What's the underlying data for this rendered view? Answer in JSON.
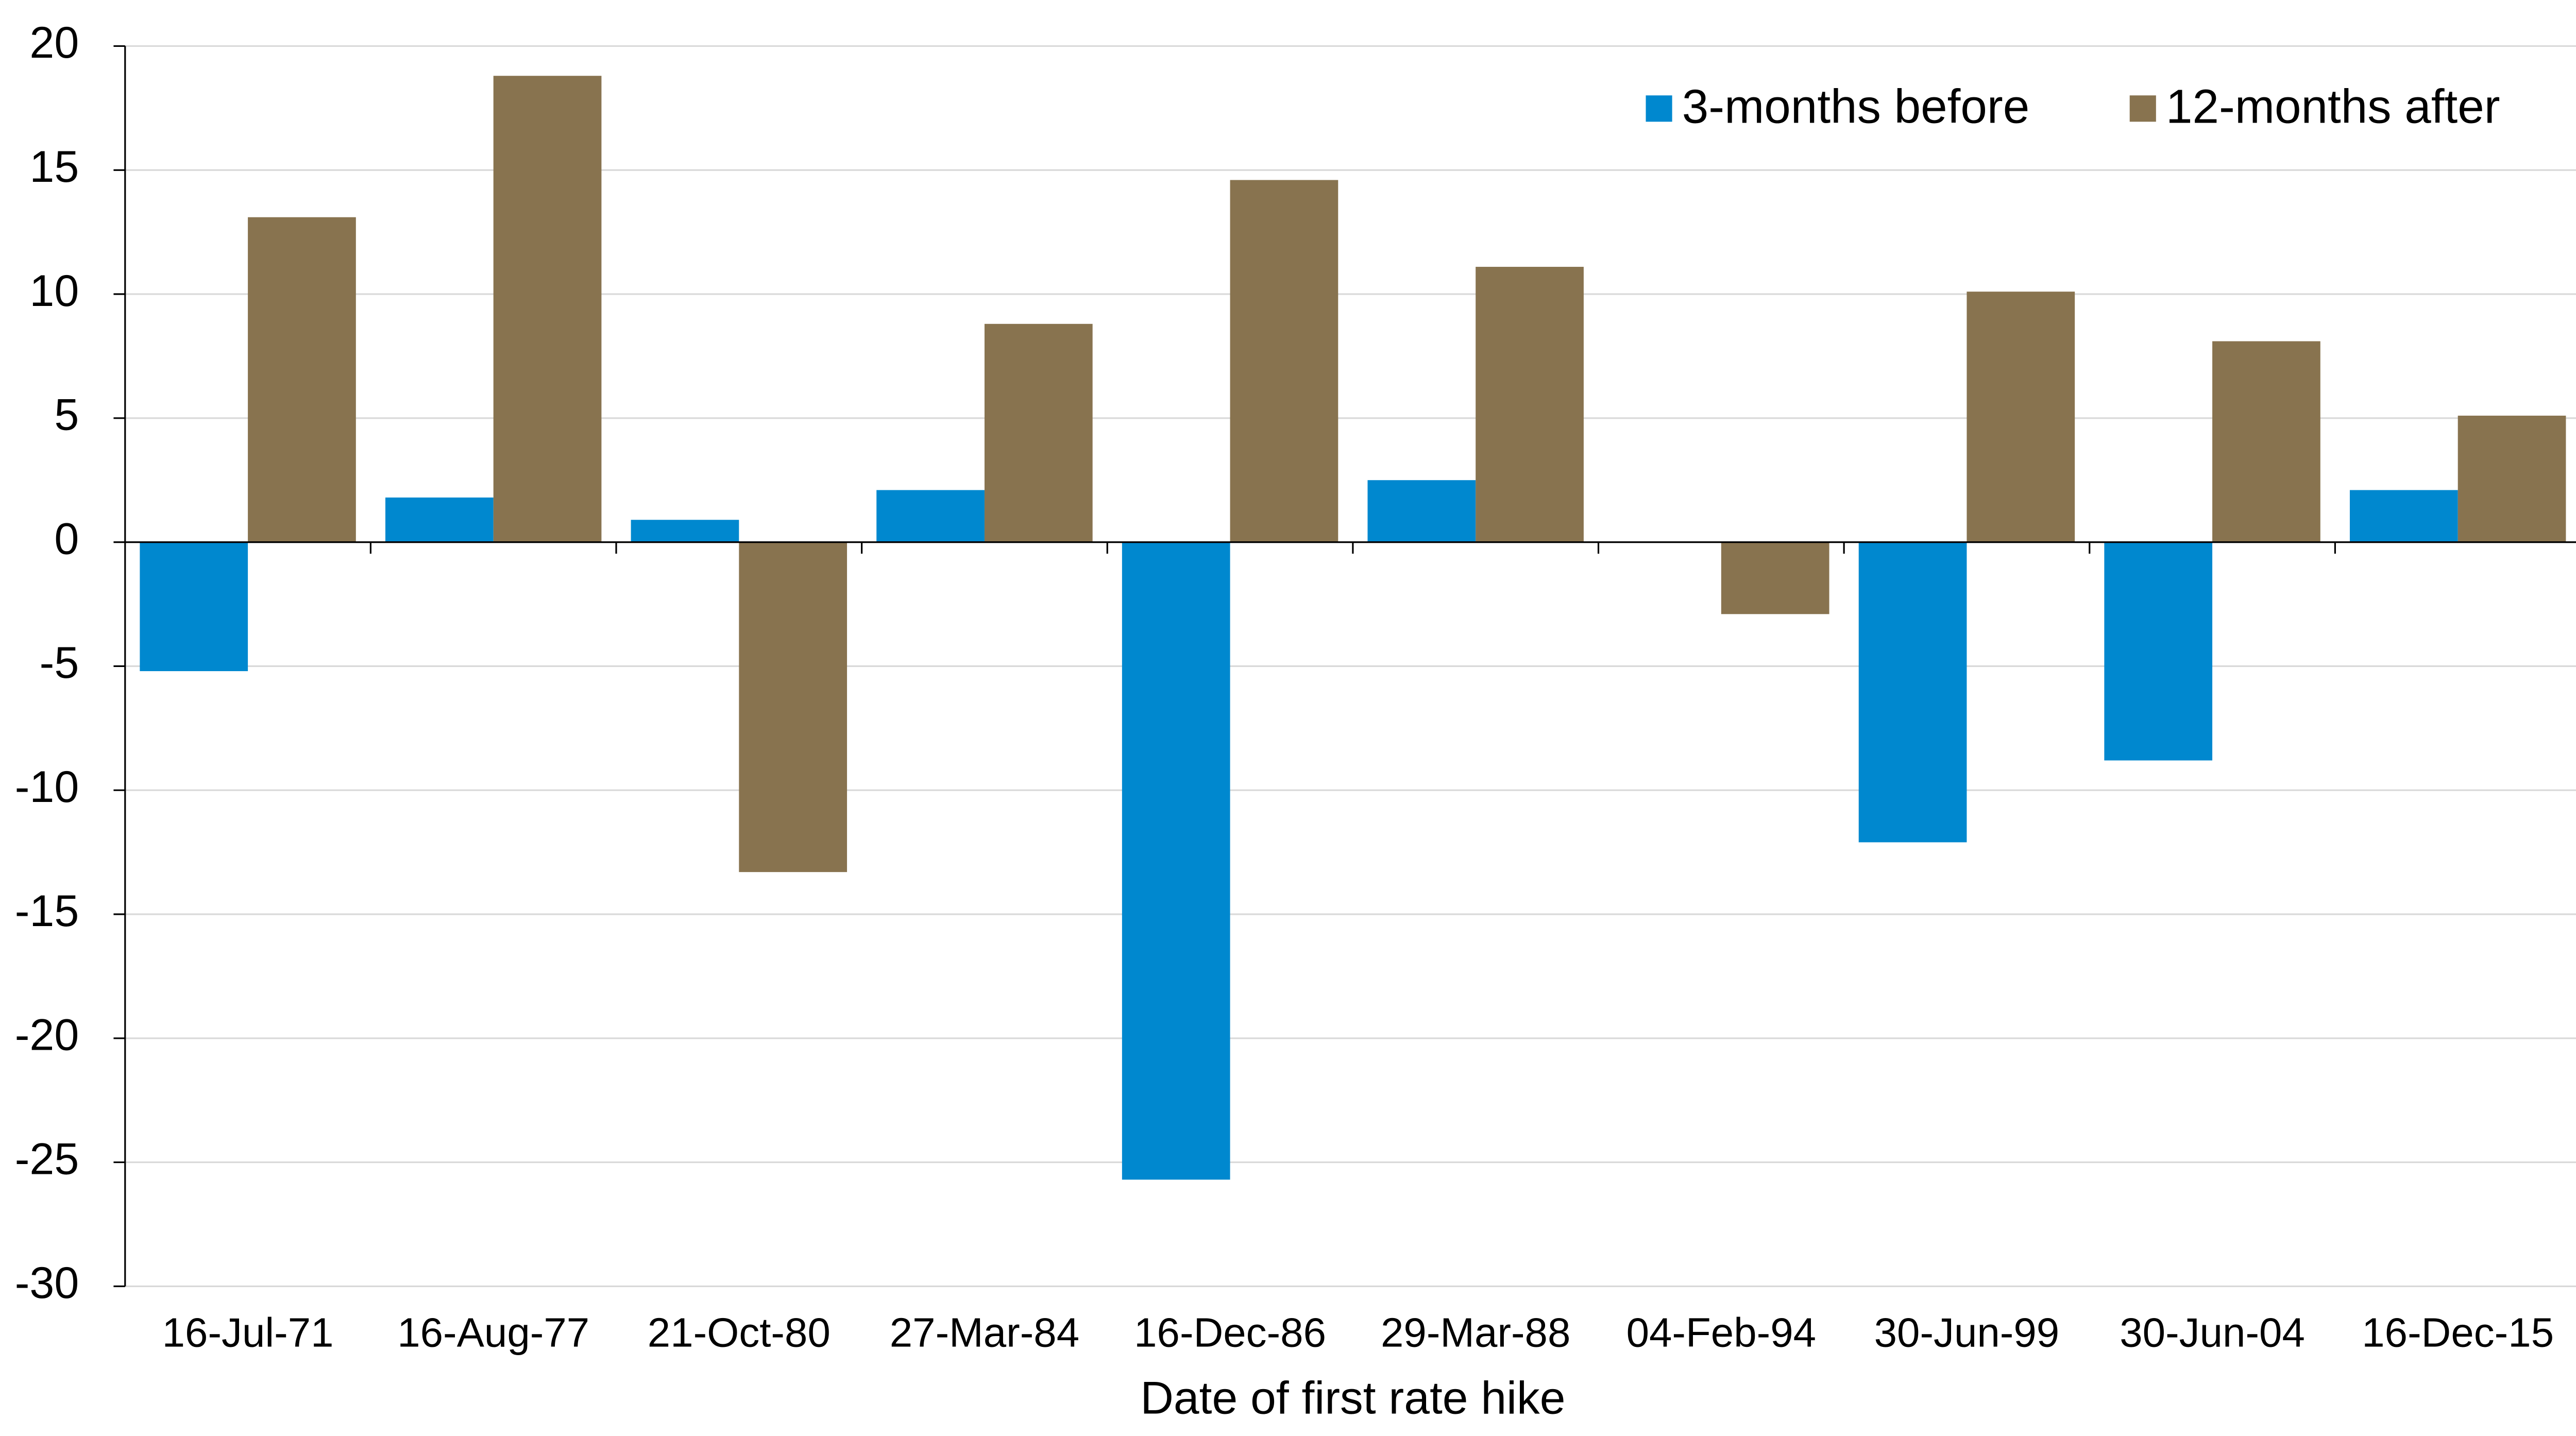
{
  "chart_data": {
    "type": "bar",
    "x_label": "Date of first rate hike",
    "categories": [
      "16-Jul-71",
      "16-Aug-77",
      "21-Oct-80",
      "27-Mar-84",
      "16-Dec-86",
      "29-Mar-88",
      "04-Feb-94",
      "30-Jun-99",
      "30-Jun-04",
      "16-Dec-15"
    ],
    "series": [
      {
        "name": "3-months before",
        "color": "#0088cf",
        "values": [
          -5.2,
          1.8,
          0.9,
          2.1,
          -25.7,
          2.5,
          0,
          -12.1,
          -8.8,
          2.1
        ]
      },
      {
        "name": "12-months after",
        "color": "#88734f",
        "values": [
          13.1,
          18.8,
          -13.3,
          8.8,
          14.6,
          11.1,
          -2.9,
          10.1,
          8.1,
          5.1
        ]
      }
    ],
    "ylim": [
      -30,
      20
    ],
    "yticks": [
      -30,
      -25,
      -20,
      -15,
      -10,
      -5,
      0,
      5,
      10,
      15,
      20
    ],
    "grid": true,
    "legend": "top-right"
  }
}
